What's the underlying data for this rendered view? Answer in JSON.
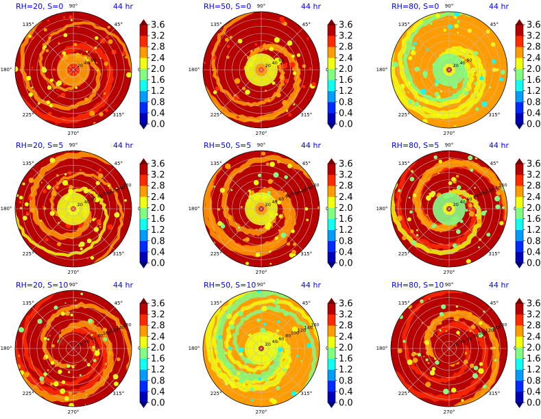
{
  "figure": {
    "colormap": "jet",
    "colorbar_extend": "both",
    "colorbar_ticks": [
      "0.0",
      "0.4",
      "0.8",
      "1.2",
      "1.6",
      "2.0",
      "2.4",
      "2.8",
      "3.2",
      "3.6"
    ],
    "angle_labels": [
      "0°",
      "45°",
      "90°",
      "135°",
      "180°",
      "225°",
      "270°",
      "315°"
    ],
    "radial_labels_short": [
      "20",
      "40",
      "60"
    ],
    "radial_labels_long": [
      "20",
      "40",
      "60",
      "80",
      "100",
      "120",
      "140",
      "160"
    ],
    "title_color": "#0000ff",
    "grid_color": "#bfbfbf"
  },
  "chart_data": [
    {
      "type": "polar-contour",
      "title_left": "RH=20, S=0",
      "title_right": "44 hr",
      "clim": [
        0.0,
        3.6
      ],
      "radial_labels": "short",
      "rmax": 160,
      "theta_ticks_deg": [
        0,
        45,
        90,
        135,
        180,
        225,
        270,
        315
      ],
      "r_ticks": [
        20,
        40,
        60,
        80,
        100,
        120,
        140,
        160
      ],
      "dominant_level": 3.6,
      "core_level": 2.8,
      "eye_level": 3.6
    },
    {
      "type": "polar-contour",
      "title_left": "RH=50, S=0",
      "title_right": "44 hr",
      "clim": [
        0.0,
        3.6
      ],
      "radial_labels": "short",
      "rmax": 160,
      "theta_ticks_deg": [
        0,
        45,
        90,
        135,
        180,
        225,
        270,
        315
      ],
      "r_ticks": [
        20,
        40,
        60,
        80,
        100,
        120,
        140,
        160
      ],
      "dominant_level": 3.6,
      "core_level": 2.4,
      "eye_level": 3.2
    },
    {
      "type": "polar-contour",
      "title_left": "RH=80, S=0",
      "title_right": "44 hr",
      "clim": [
        0.0,
        3.6
      ],
      "radial_labels": "short",
      "rmax": 160,
      "theta_ticks_deg": [
        0,
        45,
        90,
        135,
        180,
        225,
        270,
        315
      ],
      "r_ticks": [
        20,
        40,
        60,
        80,
        100,
        120,
        140,
        160
      ],
      "dominant_level": 2.8,
      "core_level": 1.6,
      "eye_level": 3.6
    },
    {
      "type": "polar-contour",
      "title_left": "RH=20, S=5",
      "title_right": "44 hr",
      "clim": [
        0.0,
        3.6
      ],
      "radial_labels": "long",
      "rmax": 160,
      "theta_ticks_deg": [
        0,
        45,
        90,
        135,
        180,
        225,
        270,
        315
      ],
      "r_ticks": [
        20,
        40,
        60,
        80,
        100,
        120,
        140,
        160
      ],
      "dominant_level": 3.6,
      "core_level": 2.0,
      "eye_level": 3.2
    },
    {
      "type": "polar-contour",
      "title_left": "RH=50, S=5",
      "title_right": "44 hr",
      "clim": [
        0.0,
        3.6
      ],
      "radial_labels": "long",
      "rmax": 160,
      "theta_ticks_deg": [
        0,
        45,
        90,
        135,
        180,
        225,
        270,
        315
      ],
      "r_ticks": [
        20,
        40,
        60,
        80,
        100,
        120,
        140,
        160
      ],
      "dominant_level": 3.2,
      "core_level": 2.4,
      "eye_level": 3.6
    },
    {
      "type": "polar-contour",
      "title_left": "RH=80, S=5",
      "title_right": "44 hr",
      "clim": [
        0.0,
        3.6
      ],
      "radial_labels": "long",
      "rmax": 160,
      "theta_ticks_deg": [
        0,
        45,
        90,
        135,
        180,
        225,
        270,
        315
      ],
      "r_ticks": [
        20,
        40,
        60,
        80,
        100,
        120,
        140,
        160
      ],
      "dominant_level": 3.2,
      "core_level": 1.6,
      "eye_level": 3.6
    },
    {
      "type": "polar-contour",
      "title_left": "RH=20, S=10",
      "title_right": "44 hr",
      "clim": [
        0.0,
        3.6
      ],
      "radial_labels": "long",
      "rmax": 160,
      "theta_ticks_deg": [
        0,
        45,
        90,
        135,
        180,
        225,
        270,
        315
      ],
      "r_ticks": [
        20,
        40,
        60,
        80,
        100,
        120,
        140,
        160
      ],
      "dominant_level": 3.2,
      "core_level": 3.2,
      "eye_level": 3.6
    },
    {
      "type": "polar-contour",
      "title_left": "RH=50, S=10",
      "title_right": "44 hr",
      "clim": [
        0.0,
        3.6
      ],
      "radial_labels": "long",
      "rmax": 160,
      "theta_ticks_deg": [
        0,
        45,
        90,
        135,
        180,
        225,
        270,
        315
      ],
      "r_ticks": [
        20,
        40,
        60,
        80,
        100,
        120,
        140,
        160
      ],
      "dominant_level": 2.8,
      "core_level": 2.0,
      "eye_level": 3.6
    },
    {
      "type": "polar-contour",
      "title_left": "RH=80, S=10",
      "title_right": "44 hr",
      "clim": [
        0.0,
        3.6
      ],
      "radial_labels": "long",
      "rmax": 160,
      "theta_ticks_deg": [
        0,
        45,
        90,
        135,
        180,
        225,
        270,
        315
      ],
      "r_ticks": [
        20,
        40,
        60,
        80,
        100,
        120,
        140,
        160
      ],
      "dominant_level": 3.2,
      "core_level": 3.6,
      "eye_level": 3.6
    }
  ]
}
